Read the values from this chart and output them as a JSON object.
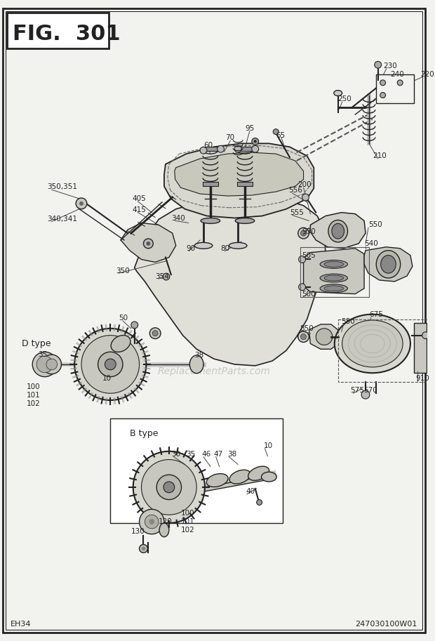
{
  "title": "FIG. 301",
  "footer_left": "EH34",
  "footer_right": "247030100W01",
  "bg_color": "#f5f5f0",
  "fig_width": 6.2,
  "fig_height": 9.13,
  "dpi": 100,
  "watermark": "ReplacementParts.com",
  "border_color": "#333333",
  "line_color": "#222222"
}
